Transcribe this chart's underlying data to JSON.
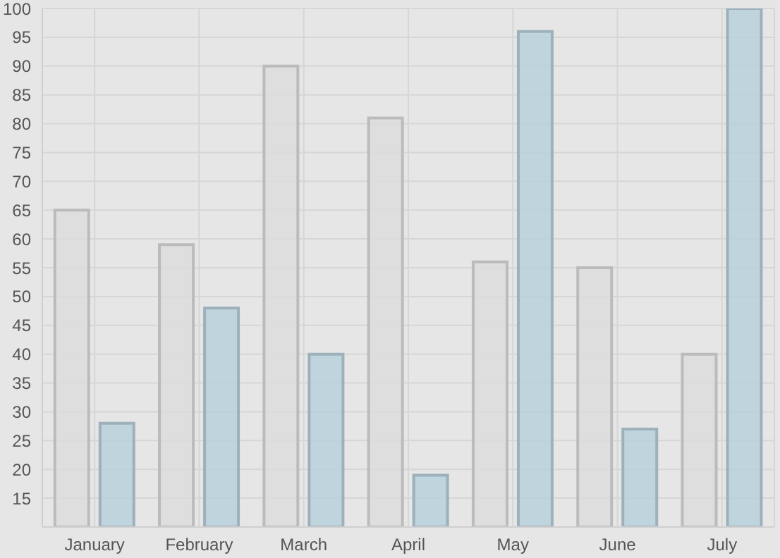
{
  "chart_data": {
    "type": "bar",
    "categories": [
      "January",
      "February",
      "March",
      "April",
      "May",
      "June",
      "July"
    ],
    "series": [
      {
        "color": "#dcdcdc",
        "values": [
          65,
          59,
          90,
          81,
          56,
          55,
          40
        ]
      },
      {
        "color": "#b9d0dc",
        "values": [
          28,
          48,
          40,
          19,
          96,
          27,
          100
        ]
      }
    ],
    "ylim": [
      10,
      100
    ],
    "yticks": [
      {
        "value": 10,
        "label": null
      },
      15,
      20,
      25,
      30,
      35,
      40,
      45,
      50,
      55,
      60,
      65,
      70,
      75,
      80,
      85,
      90,
      95,
      100
    ],
    "grid": true,
    "legend": false
  }
}
